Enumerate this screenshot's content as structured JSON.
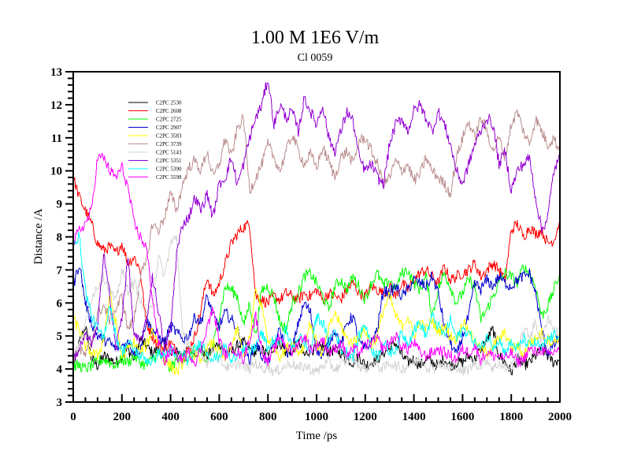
{
  "chart_data": {
    "type": "line",
    "title": "1.00 M 1E6 V/m",
    "subtitle": "Cl 0059",
    "xlabel": "Time /ps",
    "ylabel": "Distance /A",
    "xlim": [
      0,
      2000
    ],
    "ylim": [
      3,
      13
    ],
    "x_major_step": 200,
    "x_minor_step": 50,
    "y_major_step": 1,
    "y_minor_step": 0.2,
    "x_ticks": [
      "0",
      "200",
      "400",
      "600",
      "800",
      "1000",
      "1200",
      "1400",
      "1600",
      "1800",
      "2000"
    ],
    "y_ticks": [
      "3",
      "4",
      "5",
      "6",
      "7",
      "8",
      "9",
      "10",
      "11",
      "12",
      "13"
    ],
    "grid": false,
    "legend_position": "top-left",
    "x_sample_step": 25,
    "series": [
      {
        "name": "C2PC 2530",
        "color": "#000000",
        "values": [
          4.0,
          4.8,
          5.3,
          4.3,
          4.1,
          4.4,
          4.3,
          4.2,
          4.4,
          4.6,
          4.3,
          4.9,
          4.7,
          4.5,
          4.6,
          4.8,
          4.4,
          4.6,
          4.3,
          4.7,
          4.5,
          4.6,
          4.4,
          4.6,
          4.8,
          4.5,
          4.5,
          4.7,
          4.8,
          4.6,
          4.5,
          4.6,
          4.4,
          4.7,
          4.8,
          4.5,
          4.6,
          4.8,
          4.4,
          4.6,
          4.6,
          4.7,
          4.5,
          4.6,
          4.5,
          4.3,
          4.2,
          4.4,
          4.1,
          4.2,
          4.3,
          4.5,
          4.6,
          4.8,
          4.4,
          4.2,
          4.3,
          4.1,
          4.3,
          4.2,
          4.1,
          4.3,
          4.1,
          4.2,
          4.2,
          4.4,
          4.3,
          4.6,
          4.9,
          5.2,
          4.4,
          4.2,
          3.9,
          4.3,
          4.1,
          4.2,
          4.4,
          4.6,
          4.4,
          4.2,
          4.3
        ]
      },
      {
        "name": "C2PC 2608",
        "color": "#ff0000",
        "values": [
          9.8,
          9.2,
          8.8,
          8.4,
          7.8,
          7.6,
          7.7,
          7.5,
          7.8,
          7.2,
          7.4,
          7.0,
          5.4,
          5.0,
          4.7,
          4.6,
          4.8,
          4.5,
          4.4,
          4.6,
          5.0,
          5.8,
          6.8,
          6.2,
          6.6,
          7.2,
          7.8,
          8.1,
          8.3,
          8.4,
          6.2,
          6.1,
          6.0,
          6.2,
          6.1,
          6.3,
          6.2,
          6.1,
          6.3,
          6.2,
          6.4,
          6.1,
          6.3,
          6.2,
          6.1,
          6.4,
          6.6,
          6.3,
          6.2,
          6.5,
          6.4,
          6.3,
          6.5,
          6.2,
          6.6,
          6.4,
          6.7,
          6.9,
          7.0,
          6.8,
          6.6,
          7.1,
          6.7,
          6.8,
          6.9,
          7.0,
          7.2,
          6.8,
          7.0,
          7.2,
          7.0,
          6.7,
          8.2,
          8.4,
          8.0,
          8.3,
          8.1,
          8.2,
          7.8,
          7.9,
          8.5
        ]
      },
      {
        "name": "C2PC 2725",
        "color": "#00ff00",
        "values": [
          4.1,
          4.1,
          4.0,
          4.1,
          4.2,
          4.3,
          4.2,
          4.1,
          4.3,
          4.2,
          4.4,
          4.2,
          4.1,
          4.3,
          4.5,
          4.2,
          4.0,
          4.3,
          4.4,
          4.3,
          4.6,
          4.4,
          4.2,
          4.7,
          5.6,
          6.5,
          6.4,
          6.2,
          5.3,
          6.0,
          5.0,
          6.4,
          6.5,
          6.2,
          5.4,
          5.2,
          6.0,
          6.3,
          6.8,
          6.9,
          6.6,
          6.2,
          5.8,
          6.5,
          6.7,
          6.4,
          6.8,
          6.5,
          6.1,
          6.6,
          6.9,
          6.5,
          6.7,
          6.4,
          6.9,
          7.0,
          6.6,
          6.4,
          6.8,
          5.6,
          6.4,
          6.9,
          6.5,
          6.0,
          6.3,
          6.7,
          6.5,
          5.5,
          5.8,
          6.2,
          6.6,
          6.9,
          6.8,
          6.6,
          7.1,
          6.9,
          6.5,
          5.6,
          5.9,
          6.4,
          6.9
        ]
      },
      {
        "name": "C2PC 2907",
        "color": "#0000cc",
        "values": [
          6.5,
          7.2,
          6.0,
          5.4,
          5.0,
          4.9,
          4.8,
          4.6,
          4.7,
          4.8,
          4.5,
          4.6,
          5.5,
          5.2,
          5.0,
          4.8,
          5.3,
          5.1,
          4.9,
          5.0,
          5.6,
          5.4,
          6.2,
          5.6,
          5.3,
          5.7,
          5.5,
          5.2,
          4.6,
          4.3,
          4.8,
          4.4,
          4.2,
          4.7,
          5.2,
          4.5,
          4.6,
          5.4,
          6.0,
          5.7,
          4.6,
          4.4,
          4.8,
          5.2,
          4.7,
          5.4,
          5.6,
          4.8,
          4.6,
          4.8,
          5.2,
          6.4,
          6.3,
          6.5,
          6.2,
          6.4,
          6.7,
          6.6,
          6.5,
          6.8,
          6.3,
          5.3,
          4.8,
          4.4,
          5.0,
          5.6,
          6.6,
          6.4,
          6.7,
          6.5,
          6.8,
          6.6,
          6.5,
          6.7,
          6.8,
          6.9,
          6.3,
          5.2,
          4.5,
          4.7,
          5.0
        ]
      },
      {
        "name": "C2PC 3583",
        "color": "#ffff00",
        "values": [
          5.5,
          5.2,
          4.7,
          4.5,
          4.4,
          4.9,
          6.3,
          5.4,
          4.4,
          4.6,
          4.8,
          4.5,
          4.7,
          5.2,
          4.8,
          4.3,
          4.1,
          3.9,
          4.2,
          4.5,
          4.4,
          4.2,
          4.6,
          4.8,
          4.5,
          4.3,
          4.7,
          5.2,
          4.4,
          4.9,
          6.4,
          5.9,
          4.9,
          4.7,
          4.4,
          4.6,
          4.8,
          4.5,
          4.7,
          5.4,
          4.8,
          4.4,
          5.2,
          5.7,
          5.3,
          4.9,
          4.8,
          5.0,
          5.2,
          4.7,
          5.0,
          5.8,
          6.2,
          5.6,
          5.3,
          5.6,
          5.0,
          5.4,
          5.2,
          5.5,
          5.1,
          5.3,
          5.0,
          4.9,
          5.4,
          5.2,
          4.8,
          4.6,
          4.5,
          4.7,
          4.9,
          5.1,
          4.6,
          4.7,
          4.4,
          4.8,
          4.9,
          5.1,
          4.9,
          4.8,
          5.0
        ]
      },
      {
        "name": "C2PC 3739",
        "color": "#bc8f8f",
        "values": [
          4.3,
          4.6,
          4.4,
          4.8,
          5.7,
          5.9,
          5.5,
          5.8,
          6.2,
          5.2,
          5.5,
          6.8,
          7.2,
          8.4,
          8.2,
          8.6,
          9.3,
          8.8,
          9.6,
          10.1,
          10.3,
          10.0,
          10.6,
          9.8,
          10.2,
          11.0,
          10.4,
          11.3,
          11.6,
          9.4,
          9.8,
          10.2,
          10.8,
          10.4,
          10.0,
          10.6,
          11.1,
          10.6,
          10.2,
          10.5,
          10.1,
          10.7,
          10.3,
          9.8,
          10.4,
          10.6,
          10.2,
          10.9,
          11.0,
          10.6,
          10.2,
          9.6,
          9.8,
          10.3,
          10.0,
          10.2,
          9.7,
          9.9,
          10.4,
          10.0,
          9.8,
          9.6,
          9.3,
          10.4,
          11.0,
          11.5,
          11.0,
          11.6,
          11.2,
          10.6,
          11.0,
          10.4,
          11.4,
          11.8,
          11.2,
          10.8,
          11.6,
          11.2,
          10.8,
          11.0,
          10.6
        ]
      },
      {
        "name": "C2PC 5143",
        "color": "#d3d3d3",
        "values": [
          4.4,
          4.7,
          5.3,
          6.2,
          6.5,
          6.8,
          6.4,
          6.0,
          7.0,
          6.4,
          6.6,
          6.2,
          5.4,
          6.0,
          7.4,
          6.8,
          7.8,
          8.0,
          5.0,
          4.8,
          4.4,
          4.5,
          4.2,
          4.6,
          4.3,
          4.1,
          4.0,
          4.2,
          4.1,
          4.0,
          4.2,
          4.0,
          4.1,
          3.9,
          4.0,
          4.1,
          4.2,
          4.0,
          4.1,
          4.0,
          3.9,
          4.1,
          4.2,
          4.0,
          4.1,
          4.3,
          4.4,
          4.1,
          4.0,
          4.2,
          4.1,
          4.0,
          4.2,
          4.1,
          4.0,
          4.1,
          4.2,
          4.3,
          4.1,
          4.0,
          4.2,
          4.1,
          4.0,
          4.1,
          3.9,
          4.0,
          4.2,
          4.1,
          4.3,
          4.0,
          4.2,
          4.0,
          4.1,
          4.3,
          5.2,
          5.0,
          5.4,
          4.8,
          5.6,
          5.2,
          5.0
        ]
      },
      {
        "name": "C2PC 5351",
        "color": "#9400d3",
        "values": [
          4.3,
          4.6,
          5.0,
          4.8,
          5.2,
          7.6,
          6.2,
          4.6,
          5.6,
          7.4,
          5.0,
          4.8,
          5.4,
          6.8,
          5.8,
          4.6,
          5.2,
          7.5,
          8.4,
          8.6,
          9.2,
          8.8,
          9.3,
          8.6,
          9.6,
          9.8,
          10.4,
          9.6,
          10.2,
          11.0,
          11.6,
          12.0,
          12.8,
          11.4,
          12.0,
          11.6,
          11.8,
          11.2,
          12.2,
          11.8,
          11.4,
          12.0,
          11.0,
          10.6,
          11.2,
          11.8,
          11.5,
          10.4,
          10.0,
          10.2,
          9.8,
          9.6,
          10.8,
          11.4,
          11.6,
          11.2,
          11.8,
          12.0,
          11.6,
          11.2,
          11.8,
          11.4,
          10.8,
          10.0,
          9.6,
          10.2,
          10.8,
          11.2,
          11.6,
          11.4,
          10.2,
          10.6,
          9.4,
          10.0,
          10.2,
          10.4,
          9.2,
          8.2,
          8.6,
          10.0,
          10.4
        ]
      },
      {
        "name": "C2PC 5390",
        "color": "#00ffff",
        "values": [
          7.9,
          8.0,
          6.4,
          5.6,
          5.2,
          4.9,
          6.0,
          5.0,
          4.5,
          4.8,
          4.6,
          4.4,
          4.3,
          4.2,
          4.5,
          4.4,
          4.6,
          4.3,
          4.5,
          4.2,
          4.6,
          4.8,
          4.5,
          4.3,
          4.4,
          4.7,
          4.2,
          4.5,
          4.6,
          4.5,
          4.7,
          5.1,
          4.6,
          4.9,
          4.8,
          5.2,
          4.6,
          5.0,
          4.8,
          4.5,
          5.6,
          5.4,
          4.8,
          5.2,
          4.6,
          4.5,
          4.4,
          5.0,
          5.4,
          4.6,
          4.4,
          4.8,
          4.5,
          4.6,
          5.1,
          4.8,
          5.2,
          5.4,
          5.0,
          5.6,
          5.3,
          5.0,
          5.5,
          4.9,
          5.2,
          5.1,
          4.8,
          4.6,
          5.0,
          4.7,
          4.9,
          4.5,
          4.8,
          4.6,
          4.9,
          4.7,
          4.8,
          4.6,
          4.9,
          5.0,
          5.1
        ]
      },
      {
        "name": "C2PC 5598",
        "color": "#ff00ff",
        "values": [
          7.8,
          8.2,
          8.4,
          8.8,
          10.4,
          10.4,
          10.0,
          9.8,
          10.1,
          9.5,
          8.4,
          8.0,
          7.7,
          6.2,
          4.8,
          4.2,
          4.6,
          4.4,
          4.3,
          4.5,
          4.2,
          4.6,
          5.3,
          5.8,
          4.9,
          4.4,
          4.7,
          4.5,
          4.3,
          4.9,
          5.6,
          4.6,
          4.2,
          4.6,
          5.0,
          4.7,
          4.5,
          4.8,
          5.0,
          4.6,
          4.7,
          4.9,
          4.5,
          4.6,
          4.8,
          4.4,
          4.6,
          4.5,
          4.7,
          4.8,
          4.9,
          4.6,
          4.8,
          5.0,
          4.7,
          4.6,
          4.8,
          4.5,
          4.4,
          4.5,
          4.6,
          4.5,
          4.4,
          4.3,
          4.6,
          4.5,
          4.7,
          4.3,
          4.5,
          4.4,
          4.4,
          4.3,
          4.5,
          4.2,
          4.3,
          4.6,
          4.5,
          4.6,
          4.4,
          4.5,
          4.7
        ]
      }
    ]
  }
}
